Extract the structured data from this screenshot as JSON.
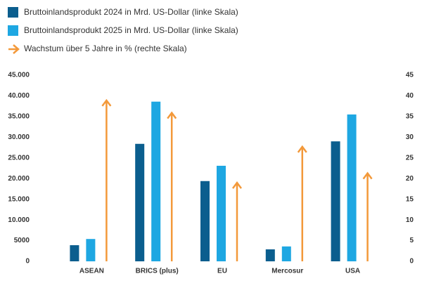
{
  "chart_data": {
    "type": "bar",
    "categories": [
      "ASEAN",
      "BRICS (plus)",
      "EU",
      "Mercosur",
      "USA"
    ],
    "series": [
      {
        "name": "Bruttoinlandsprodukt 2024 in Mrd. US-Dollar (linke Skala)",
        "color": "#0b5e8e",
        "values": [
          3900,
          28400,
          19400,
          2900,
          29000
        ]
      },
      {
        "name": "Bruttoinlandsprodukt 2025 in Mrd. US-Dollar (linke Skala)",
        "color": "#1ea7e2",
        "values": [
          5400,
          38600,
          23100,
          3600,
          35500
        ]
      },
      {
        "name": "Wachstum über 5 Jahre in % (rechte Skala)",
        "color": "#f3993a",
        "axis": "y2",
        "values": [
          38.9,
          35.9,
          19,
          27.7,
          21.3
        ]
      }
    ],
    "ylim": [
      0,
      45000
    ],
    "yticks": [
      0,
      5000,
      {
        "value": 10000,
        "label": "10.000"
      },
      {
        "value": 15000,
        "label": "15.000"
      },
      {
        "value": 20000,
        "label": "20.000"
      },
      {
        "value": 25000,
        "label": "25.000"
      },
      {
        "value": 30000,
        "label": "30.000"
      },
      {
        "value": 35000,
        "label": "35.000"
      },
      {
        "value": 40000,
        "label": "40.000"
      },
      {
        "value": 45000,
        "label": "45.000"
      }
    ],
    "y2lim": [
      0,
      45
    ],
    "y2ticks": [
      0,
      5,
      10,
      15,
      20,
      25,
      30,
      35,
      40,
      45
    ],
    "grid": false
  }
}
